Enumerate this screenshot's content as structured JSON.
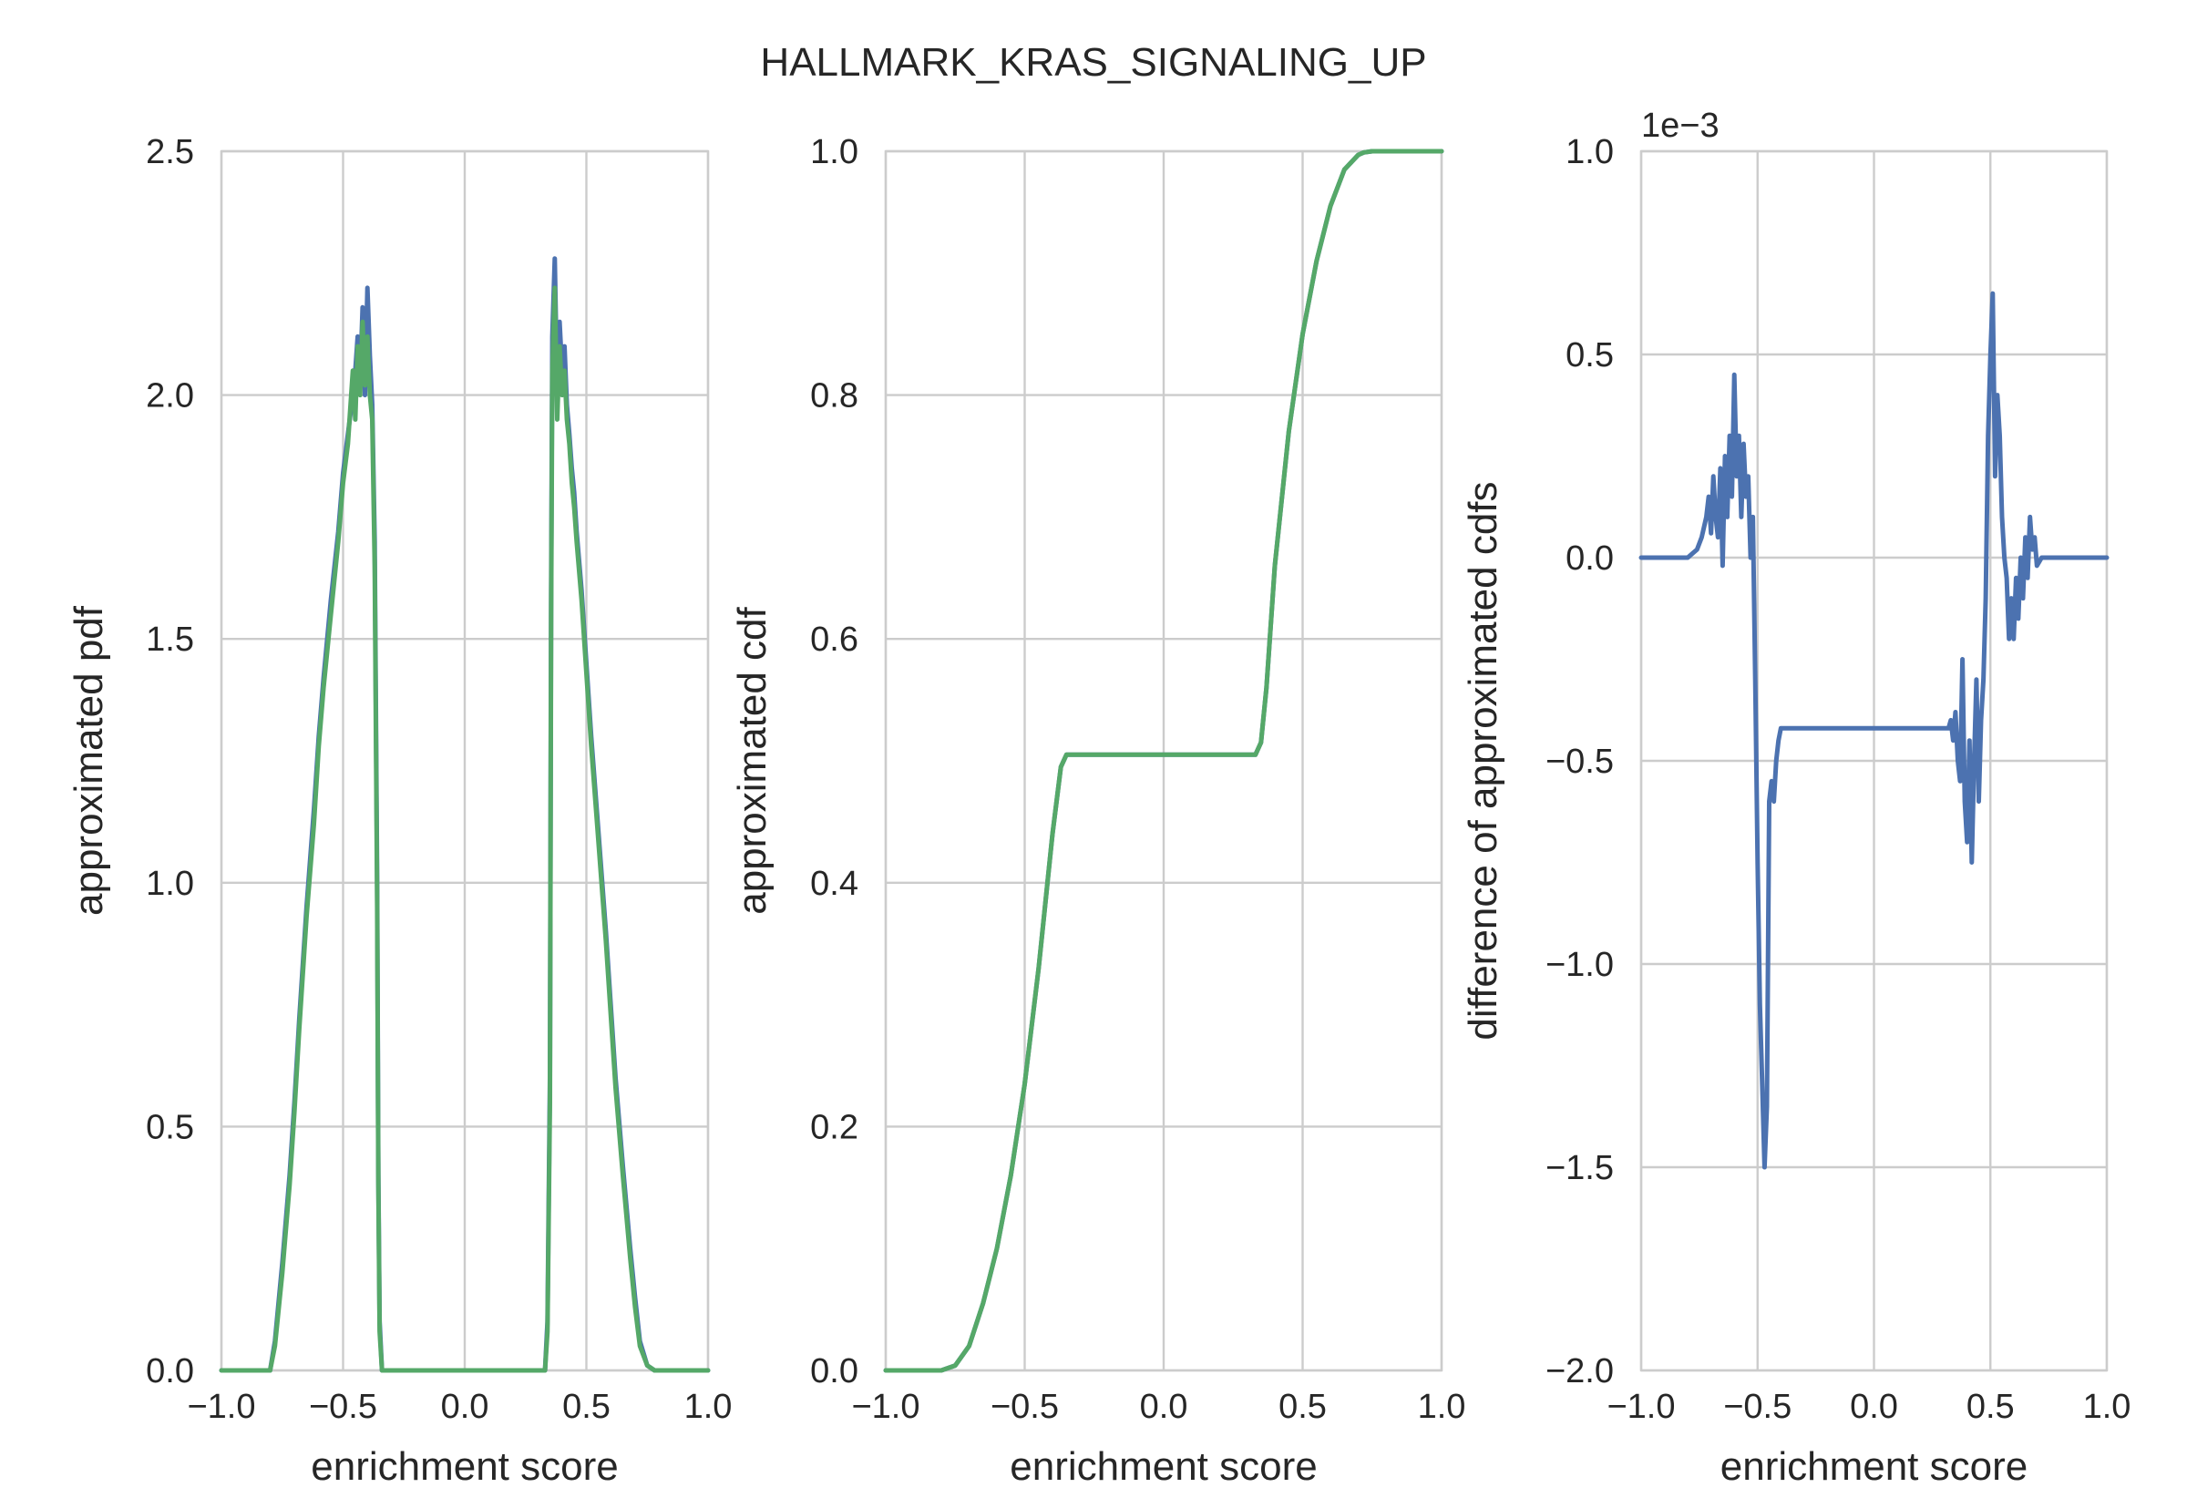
{
  "figure": {
    "title": "HALLMARK_KRAS_SIGNALING_UP"
  },
  "colors": {
    "blue": "#4c72b0",
    "green": "#55a868",
    "grid": "#cccccc",
    "axes_edge": "#cccccc",
    "text": "#262626"
  },
  "chart_data": [
    {
      "type": "line",
      "xlabel": "enrichment score",
      "ylabel": "approximated pdf",
      "xlim": [
        -1.0,
        1.0
      ],
      "ylim": [
        0.0,
        2.5
      ],
      "xticks": [
        -1.0,
        -0.5,
        0.0,
        0.5,
        1.0
      ],
      "xtick_labels": [
        "−1.0",
        "−0.5",
        "0.0",
        "0.5",
        "1.0"
      ],
      "yticks": [
        0.0,
        0.5,
        1.0,
        1.5,
        2.0,
        2.5
      ],
      "ytick_labels": [
        "0.0",
        "0.5",
        "1.0",
        "1.5",
        "2.0",
        "2.5"
      ],
      "offset_label": "",
      "grid": true,
      "series": [
        {
          "color": "blue",
          "x": [
            -1.0,
            -0.8,
            -0.78,
            -0.75,
            -0.72,
            -0.7,
            -0.68,
            -0.65,
            -0.62,
            -0.6,
            -0.58,
            -0.55,
            -0.52,
            -0.5,
            -0.48,
            -0.46,
            -0.45,
            -0.44,
            -0.43,
            -0.42,
            -0.41,
            -0.4,
            -0.39,
            -0.38,
            -0.37,
            -0.36,
            -0.355,
            -0.35,
            -0.34,
            -0.33,
            -0.3,
            0.0,
            0.3,
            0.33,
            0.34,
            0.35,
            0.355,
            0.36,
            0.37,
            0.38,
            0.39,
            0.4,
            0.41,
            0.42,
            0.43,
            0.44,
            0.45,
            0.46,
            0.48,
            0.5,
            0.52,
            0.55,
            0.58,
            0.6,
            0.62,
            0.65,
            0.68,
            0.7,
            0.72,
            0.75,
            0.78,
            0.8,
            1.0
          ],
          "y": [
            0.0,
            0.0,
            0.06,
            0.22,
            0.4,
            0.55,
            0.72,
            0.95,
            1.15,
            1.3,
            1.42,
            1.58,
            1.72,
            1.84,
            1.92,
            2.0,
            2.05,
            2.12,
            2.03,
            2.18,
            2.0,
            2.22,
            2.08,
            1.98,
            1.7,
            1.0,
            0.4,
            0.1,
            0.0,
            0.0,
            0.0,
            0.0,
            0.0,
            0.0,
            0.1,
            0.6,
            1.6,
            2.12,
            2.28,
            2.0,
            2.15,
            2.05,
            2.1,
            1.98,
            1.92,
            1.85,
            1.8,
            1.72,
            1.6,
            1.45,
            1.3,
            1.1,
            0.9,
            0.75,
            0.6,
            0.42,
            0.25,
            0.15,
            0.06,
            0.01,
            0.0,
            0.0,
            0.0
          ]
        },
        {
          "color": "green",
          "x": [
            -1.0,
            -0.8,
            -0.78,
            -0.75,
            -0.72,
            -0.7,
            -0.68,
            -0.65,
            -0.62,
            -0.6,
            -0.58,
            -0.55,
            -0.52,
            -0.5,
            -0.48,
            -0.46,
            -0.45,
            -0.44,
            -0.43,
            -0.42,
            -0.41,
            -0.4,
            -0.39,
            -0.38,
            -0.37,
            -0.36,
            -0.355,
            -0.35,
            -0.34,
            -0.33,
            -0.3,
            0.0,
            0.3,
            0.33,
            0.34,
            0.35,
            0.355,
            0.36,
            0.37,
            0.38,
            0.39,
            0.4,
            0.41,
            0.42,
            0.43,
            0.44,
            0.45,
            0.46,
            0.48,
            0.5,
            0.52,
            0.55,
            0.58,
            0.6,
            0.62,
            0.65,
            0.68,
            0.7,
            0.72,
            0.75,
            0.78,
            0.8,
            1.0
          ],
          "y": [
            0.0,
            0.0,
            0.05,
            0.2,
            0.38,
            0.53,
            0.7,
            0.93,
            1.12,
            1.28,
            1.4,
            1.55,
            1.7,
            1.82,
            1.9,
            2.05,
            1.95,
            2.1,
            2.0,
            2.15,
            2.02,
            2.12,
            2.0,
            1.95,
            1.65,
            0.95,
            0.38,
            0.08,
            0.0,
            0.0,
            0.0,
            0.0,
            0.0,
            0.0,
            0.08,
            0.55,
            1.55,
            2.05,
            2.22,
            1.95,
            2.1,
            2.0,
            2.05,
            1.95,
            1.9,
            1.82,
            1.77,
            1.7,
            1.58,
            1.43,
            1.28,
            1.08,
            0.88,
            0.73,
            0.58,
            0.4,
            0.23,
            0.13,
            0.05,
            0.01,
            0.0,
            0.0,
            0.0
          ]
        }
      ]
    },
    {
      "type": "line",
      "xlabel": "enrichment score",
      "ylabel": "approximated cdf",
      "xlim": [
        -1.0,
        1.0
      ],
      "ylim": [
        0.0,
        1.0
      ],
      "xticks": [
        -1.0,
        -0.5,
        0.0,
        0.5,
        1.0
      ],
      "xtick_labels": [
        "−1.0",
        "−0.5",
        "0.0",
        "0.5",
        "1.0"
      ],
      "yticks": [
        0.0,
        0.2,
        0.4,
        0.6,
        0.8,
        1.0
      ],
      "ytick_labels": [
        "0.0",
        "0.2",
        "0.4",
        "0.6",
        "0.8",
        "1.0"
      ],
      "offset_label": "",
      "grid": true,
      "series": [
        {
          "color": "blue",
          "x": [
            -1.0,
            -0.8,
            -0.75,
            -0.7,
            -0.65,
            -0.6,
            -0.55,
            -0.5,
            -0.45,
            -0.4,
            -0.37,
            -0.35,
            -0.33,
            0.0,
            0.33,
            0.35,
            0.37,
            0.4,
            0.45,
            0.5,
            0.55,
            0.6,
            0.65,
            0.7,
            0.72,
            0.75,
            1.0
          ],
          "y": [
            0.0,
            0.0,
            0.004,
            0.02,
            0.055,
            0.1,
            0.16,
            0.235,
            0.33,
            0.44,
            0.495,
            0.505,
            0.505,
            0.505,
            0.505,
            0.515,
            0.56,
            0.66,
            0.77,
            0.85,
            0.91,
            0.955,
            0.985,
            0.997,
            0.999,
            1.0,
            1.0
          ]
        },
        {
          "color": "green",
          "x": [
            -1.0,
            -0.8,
            -0.75,
            -0.7,
            -0.65,
            -0.6,
            -0.55,
            -0.5,
            -0.45,
            -0.4,
            -0.37,
            -0.35,
            -0.33,
            0.0,
            0.33,
            0.35,
            0.37,
            0.4,
            0.45,
            0.5,
            0.55,
            0.6,
            0.65,
            0.7,
            0.72,
            0.75,
            1.0
          ],
          "y": [
            0.0,
            0.0,
            0.004,
            0.02,
            0.055,
            0.1,
            0.16,
            0.235,
            0.33,
            0.44,
            0.495,
            0.505,
            0.505,
            0.505,
            0.505,
            0.515,
            0.56,
            0.66,
            0.77,
            0.85,
            0.91,
            0.955,
            0.985,
            0.997,
            0.999,
            1.0,
            1.0
          ]
        }
      ]
    },
    {
      "type": "line",
      "xlabel": "enrichment score",
      "ylabel": "difference of approximated cdfs",
      "xlim": [
        -1.0,
        1.0
      ],
      "ylim": [
        -2.0,
        1.0
      ],
      "xticks": [
        -1.0,
        -0.5,
        0.0,
        0.5,
        1.0
      ],
      "xtick_labels": [
        "−1.0",
        "−0.5",
        "0.0",
        "0.5",
        "1.0"
      ],
      "yticks": [
        -2.0,
        -1.5,
        -1.0,
        -0.5,
        0.0,
        0.5,
        1.0
      ],
      "ytick_labels": [
        "−2.0",
        "−1.5",
        "−1.0",
        "−0.5",
        "0.0",
        "0.5",
        "1.0"
      ],
      "offset_label": "1e−3",
      "grid": true,
      "series": [
        {
          "color": "blue",
          "x": [
            -1.0,
            -0.8,
            -0.78,
            -0.76,
            -0.74,
            -0.72,
            -0.71,
            -0.7,
            -0.69,
            -0.68,
            -0.67,
            -0.66,
            -0.65,
            -0.64,
            -0.63,
            -0.62,
            -0.61,
            -0.6,
            -0.59,
            -0.58,
            -0.57,
            -0.56,
            -0.55,
            -0.54,
            -0.53,
            -0.52,
            -0.51,
            -0.5,
            -0.49,
            -0.48,
            -0.47,
            -0.46,
            -0.45,
            -0.44,
            -0.43,
            -0.42,
            -0.41,
            -0.4,
            -0.39,
            -0.38,
            -0.37,
            -0.36,
            -0.35,
            -0.34,
            0.0,
            0.32,
            0.33,
            0.34,
            0.35,
            0.36,
            0.37,
            0.38,
            0.39,
            0.4,
            0.41,
            0.42,
            0.43,
            0.44,
            0.45,
            0.46,
            0.47,
            0.48,
            0.49,
            0.5,
            0.51,
            0.52,
            0.53,
            0.54,
            0.55,
            0.56,
            0.57,
            0.58,
            0.59,
            0.6,
            0.61,
            0.62,
            0.63,
            0.64,
            0.65,
            0.66,
            0.67,
            0.68,
            0.69,
            0.7,
            0.72,
            0.74,
            0.76,
            0.78,
            0.8,
            1.0
          ],
          "y": [
            0.0,
            0.0,
            0.01,
            0.02,
            0.05,
            0.1,
            0.15,
            0.06,
            0.2,
            0.1,
            0.05,
            0.22,
            -0.02,
            0.25,
            0.1,
            0.3,
            0.15,
            0.45,
            0.2,
            0.3,
            0.1,
            0.28,
            0.15,
            0.2,
            0.0,
            0.1,
            -0.3,
            -0.75,
            -1.1,
            -1.3,
            -1.5,
            -1.35,
            -0.6,
            -0.55,
            -0.6,
            -0.5,
            -0.45,
            -0.42,
            -0.42,
            -0.42,
            -0.42,
            -0.42,
            -0.42,
            -0.42,
            -0.42,
            -0.42,
            -0.4,
            -0.45,
            -0.38,
            -0.5,
            -0.55,
            -0.25,
            -0.6,
            -0.7,
            -0.45,
            -0.75,
            -0.5,
            -0.3,
            -0.6,
            -0.4,
            -0.3,
            -0.1,
            0.3,
            0.5,
            0.65,
            0.2,
            0.4,
            0.3,
            0.1,
            0.0,
            -0.05,
            -0.2,
            -0.1,
            -0.2,
            -0.05,
            -0.15,
            0.0,
            -0.1,
            0.05,
            -0.05,
            0.1,
            0.02,
            0.05,
            -0.02,
            0.0,
            0.0,
            0.0,
            0.0,
            0.0,
            0.0
          ]
        }
      ]
    }
  ]
}
